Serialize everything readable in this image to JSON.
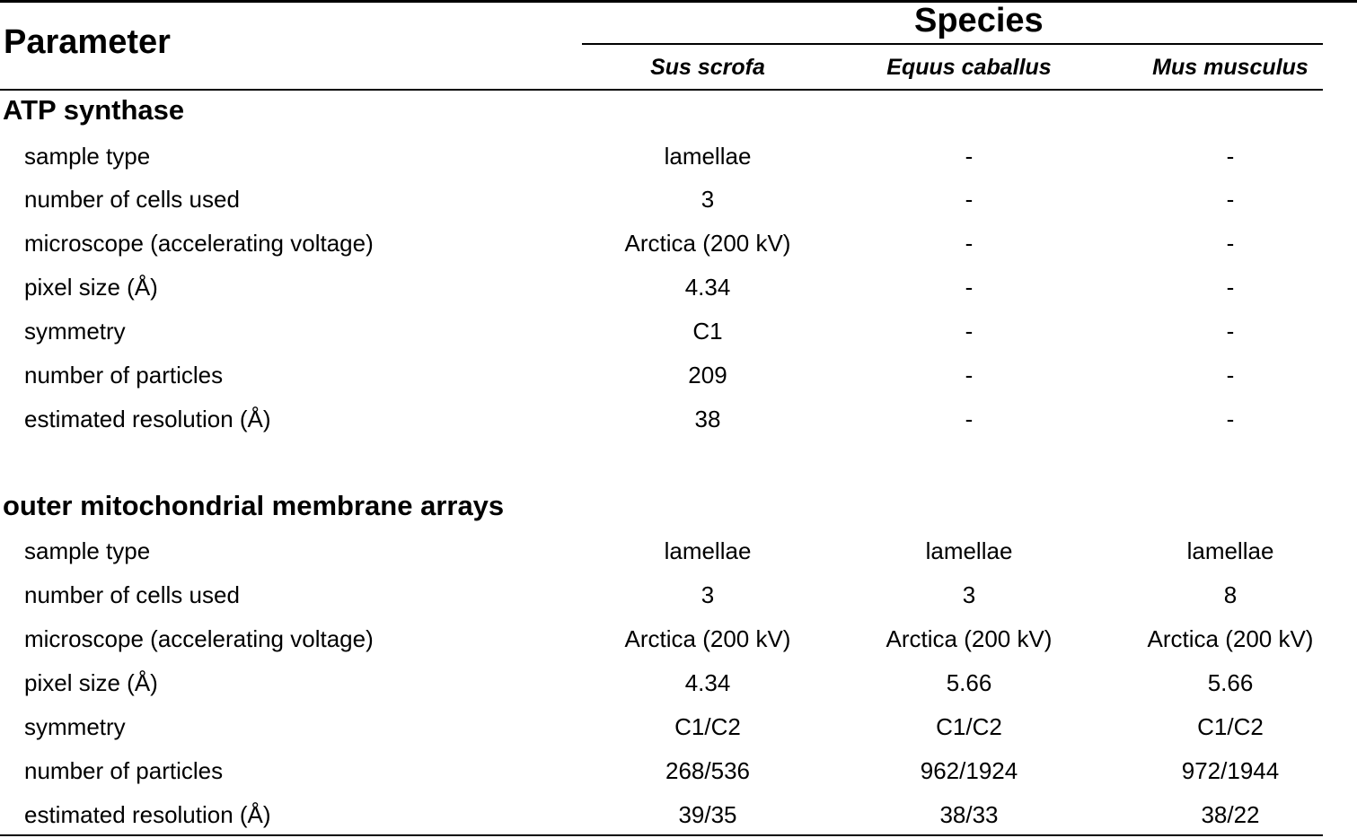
{
  "header": {
    "parameter_label": "Parameter",
    "species_label": "Species",
    "species": [
      "Sus scrofa",
      "Equus caballus",
      "Mus musculus"
    ]
  },
  "sections": [
    {
      "title": "ATP synthase",
      "rows": [
        {
          "label": "sample type",
          "values": [
            "lamellae",
            "-",
            "-"
          ]
        },
        {
          "label": "number of cells used",
          "values": [
            "3",
            "-",
            "-"
          ]
        },
        {
          "label": "microscope (accelerating voltage)",
          "values": [
            "Arctica (200 kV)",
            "-",
            "-"
          ]
        },
        {
          "label": "pixel size (Å)",
          "values": [
            "4.34",
            "-",
            "-"
          ]
        },
        {
          "label": "symmetry",
          "values": [
            "C1",
            "-",
            "-"
          ]
        },
        {
          "label": "number of particles",
          "values": [
            "209",
            "-",
            "-"
          ]
        },
        {
          "label": "estimated resolution (Å)",
          "values": [
            "38",
            "-",
            "-"
          ]
        }
      ]
    },
    {
      "title": "outer mitochondrial membrane arrays",
      "rows": [
        {
          "label": "sample type",
          "values": [
            "lamellae",
            "lamellae",
            "lamellae"
          ]
        },
        {
          "label": "number of cells used",
          "values": [
            "3",
            "3",
            "8"
          ]
        },
        {
          "label": "microscope (accelerating voltage)",
          "values": [
            "Arctica (200 kV)",
            "Arctica (200 kV)",
            "Arctica (200 kV)"
          ]
        },
        {
          "label": "pixel size (Å)",
          "values": [
            "4.34",
            "5.66",
            "5.66"
          ]
        },
        {
          "label": "symmetry",
          "values": [
            "C1/C2",
            "C1/C2",
            "C1/C2"
          ]
        },
        {
          "label": "number of particles",
          "values": [
            "268/536",
            "962/1924",
            "972/1944"
          ]
        },
        {
          "label": "estimated resolution (Å)",
          "values": [
            "39/35",
            "38/33",
            "38/22"
          ]
        }
      ]
    }
  ]
}
